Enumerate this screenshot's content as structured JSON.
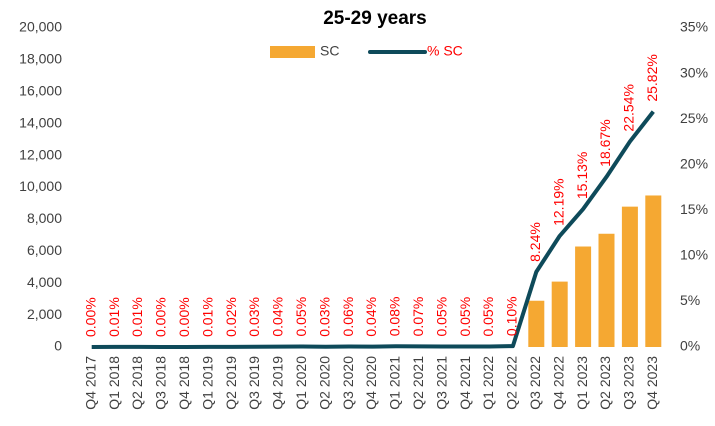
{
  "chart_data": {
    "type": "bar-line",
    "title": "25-29 years",
    "categories": [
      "Q4 2017",
      "Q1 2018",
      "Q2 2018",
      "Q3 2018",
      "Q4 2018",
      "Q1 2019",
      "Q2 2019",
      "Q3 2019",
      "Q4 2019",
      "Q1 2020",
      "Q2 2020",
      "Q3 2020",
      "Q4 2020",
      "Q1 2021",
      "Q2 2021",
      "Q3 2021",
      "Q4 2021",
      "Q1 2022",
      "Q2 2022",
      "Q3 2022",
      "Q4 2022",
      "Q1 2023",
      "Q2 2023",
      "Q3 2023",
      "Q4 2023"
    ],
    "series": [
      {
        "name": "SC",
        "type": "bar",
        "color": "#f5a832",
        "values": [
          0,
          0,
          0,
          0,
          0,
          0,
          0,
          0,
          0,
          0,
          0,
          0,
          0,
          0,
          0,
          0,
          0,
          0,
          0,
          2900,
          4100,
          6300,
          7100,
          8800,
          9500
        ]
      },
      {
        "name": "% SC",
        "type": "line",
        "axis": "y2",
        "color": "#0e4a5a",
        "label_color": "#ff0000",
        "values": [
          0.0,
          0.01,
          0.01,
          0.0,
          0.0,
          0.01,
          0.02,
          0.03,
          0.04,
          0.05,
          0.03,
          0.06,
          0.04,
          0.08,
          0.07,
          0.05,
          0.05,
          0.05,
          0.1,
          8.24,
          12.19,
          15.13,
          18.67,
          22.54,
          25.82
        ],
        "value_labels": [
          "0.00%",
          "0.01%",
          "0.01%",
          "0.00%",
          "0.00%",
          "0.01%",
          "0.02%",
          "0.03%",
          "0.04%",
          "0.05%",
          "0.03%",
          "0.06%",
          "0.04%",
          "0.08%",
          "0.07%",
          "0.05%",
          "0.05%",
          "0.05%",
          "0.10%",
          "8.24%",
          "12.19%",
          "15.13%",
          "18.67%",
          "22.54%",
          "25.82%"
        ]
      }
    ],
    "ylim": [
      0,
      20000
    ],
    "yticks": [
      {
        "value": 0,
        "label": "0"
      },
      {
        "value": 2000,
        "label": "2,000"
      },
      {
        "value": 4000,
        "label": "4,000"
      },
      {
        "value": 6000,
        "label": "6,000"
      },
      {
        "value": 8000,
        "label": "8,000"
      },
      {
        "value": 10000,
        "label": "10,000"
      },
      {
        "value": 12000,
        "label": "12,000"
      },
      {
        "value": 14000,
        "label": "14,000"
      },
      {
        "value": 16000,
        "label": "16,000"
      },
      {
        "value": 18000,
        "label": "18,000"
      },
      {
        "value": 20000,
        "label": "20,000"
      }
    ],
    "y2lim": [
      0,
      35
    ],
    "y2ticks": [
      {
        "value": 0,
        "label": "0%"
      },
      {
        "value": 5,
        "label": "5%"
      },
      {
        "value": 10,
        "label": "10%"
      },
      {
        "value": 15,
        "label": "15%"
      },
      {
        "value": 20,
        "label": "20%"
      },
      {
        "value": 25,
        "label": "25%"
      },
      {
        "value": 30,
        "label": "30%"
      },
      {
        "value": 35,
        "label": "35%"
      }
    ],
    "legend": "top"
  }
}
